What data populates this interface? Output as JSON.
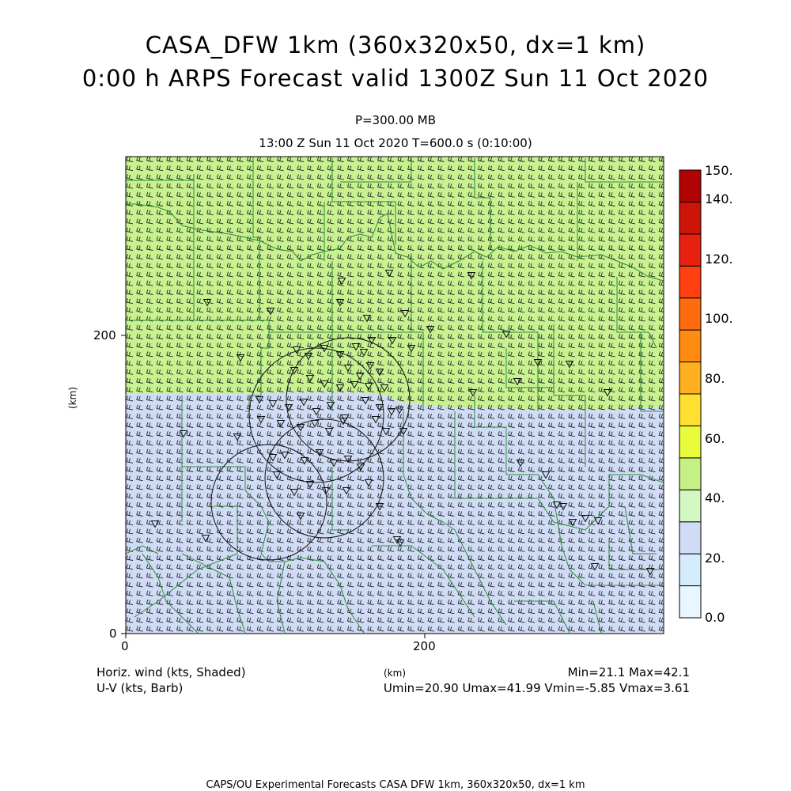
{
  "header": {
    "title_line1": "CASA_DFW 1km (360x320x50, dx=1 km)",
    "title_line2": "0:00 h ARPS Forecast valid 1300Z Sun 11 Oct 2020",
    "pressure": "P=300.00 MB",
    "time_info": "13:00 Z Sun 11 Oct 2020   T=600.0 s (0:10:00)"
  },
  "axes": {
    "x_unit": "(km)",
    "y_unit": "(km)",
    "x_ticks": [
      "0",
      "200"
    ],
    "y_ticks": [
      "0",
      "200"
    ]
  },
  "colorbar": {
    "labels": [
      "0.0",
      "20.",
      "40.",
      "60.",
      "80.",
      "100.",
      "120.",
      "140.",
      "150."
    ],
    "colors": [
      "#e8f6ff",
      "#d4ecfc",
      "#d0dcf6",
      "#d4f8c4",
      "#c4f084",
      "#e8fc3c",
      "#ffe030",
      "#ffb020",
      "#ff8c10",
      "#ff6c10",
      "#ff4010",
      "#e82010",
      "#cc1408",
      "#b00404"
    ],
    "shaded_low": "#d0dcf6",
    "shaded_high": "#c8f290"
  },
  "legend": {
    "shaded_label": "Horiz. wind (kts, Shaded)",
    "barb_label": "U-V (kts, Barb)",
    "minmax": "Min=21.1 Max=42.1",
    "uv_stats": "Umin=20.90 Umax=41.99 Vmin=-5.85 Vmax=3.61"
  },
  "footer": {
    "text": "CAPS/OU Experimental Forecasts  CASA DFW 1km, 360x320x50, dx=1 km"
  },
  "icons": {
    "radar_site": "triangle-down-icon",
    "wind_barb": "wind-barb-icon"
  }
}
